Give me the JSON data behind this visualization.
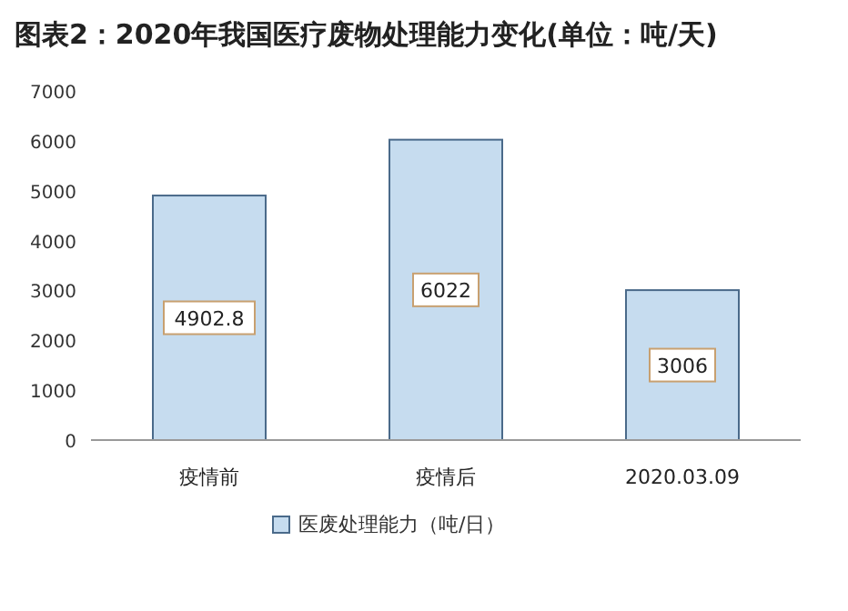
{
  "chart_data": {
    "type": "bar",
    "title": "图表2：2020年我国医疗废物处理能力变化(单位：吨/天)",
    "categories": [
      "疫情前",
      "疫情后",
      "2020.03.09"
    ],
    "series": [
      {
        "name": "医废处理能力（吨/日）",
        "color": "#c6dcef",
        "values": [
          4902.8,
          6022,
          3006
        ]
      }
    ],
    "ylim": [
      0,
      7000
    ],
    "yticks": [
      0,
      1000,
      2000,
      3000,
      4000,
      5000,
      6000,
      7000
    ],
    "data_labels": true,
    "legend": "bottom",
    "grid": false
  }
}
